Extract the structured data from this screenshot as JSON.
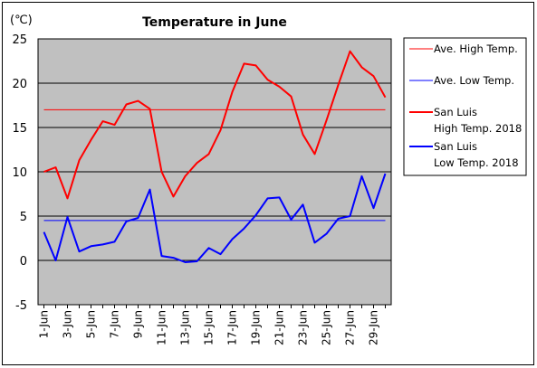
{
  "chart_data": {
    "type": "line",
    "title": "Temperature in June",
    "ylabel": "(℃)",
    "xlabel": "",
    "ylim": [
      -5,
      25
    ],
    "yticks": [
      -5,
      0,
      5,
      10,
      15,
      20,
      25
    ],
    "grid": true,
    "legend_position": "right",
    "x": [
      "1-Jun",
      "2-Jun",
      "3-Jun",
      "4-Jun",
      "5-Jun",
      "6-Jun",
      "7-Jun",
      "8-Jun",
      "9-Jun",
      "10-Jun",
      "11-Jun",
      "12-Jun",
      "13-Jun",
      "14-Jun",
      "15-Jun",
      "16-Jun",
      "17-Jun",
      "18-Jun",
      "19-Jun",
      "20-Jun",
      "21-Jun",
      "22-Jun",
      "23-Jun",
      "24-Jun",
      "25-Jun",
      "26-Jun",
      "27-Jun",
      "28-Jun",
      "29-Jun",
      "30-Jun"
    ],
    "x_tick_labels": [
      "1-Jun",
      "3-Jun",
      "5-Jun",
      "7-Jun",
      "9-Jun",
      "11-Jun",
      "13-Jun",
      "15-Jun",
      "17-Jun",
      "19-Jun",
      "21-Jun",
      "23-Jun",
      "25-Jun",
      "27-Jun",
      "29-Jun"
    ],
    "series": [
      {
        "name": "Ave. High Temp.",
        "color": "#ff0000",
        "width": 1,
        "values": [
          17,
          17,
          17,
          17,
          17,
          17,
          17,
          17,
          17,
          17,
          17,
          17,
          17,
          17,
          17,
          17,
          17,
          17,
          17,
          17,
          17,
          17,
          17,
          17,
          17,
          17,
          17,
          17,
          17,
          17
        ]
      },
      {
        "name": "Ave. Low Temp.",
        "color": "#0000ff",
        "width": 1,
        "values": [
          4.5,
          4.5,
          4.5,
          4.5,
          4.5,
          4.5,
          4.5,
          4.5,
          4.5,
          4.5,
          4.5,
          4.5,
          4.5,
          4.5,
          4.5,
          4.5,
          4.5,
          4.5,
          4.5,
          4.5,
          4.5,
          4.5,
          4.5,
          4.5,
          4.5,
          4.5,
          4.5,
          4.5,
          4.5,
          4.5
        ]
      },
      {
        "name": "San Luis High Temp. 2018",
        "legend_lines": [
          "San Luis",
          "High Temp. 2018"
        ],
        "color": "#ff0000",
        "width": 2,
        "values": [
          10,
          10.5,
          7,
          11.3,
          13.6,
          15.7,
          15.3,
          17.6,
          18,
          17.1,
          10,
          7.2,
          9.5,
          11,
          12,
          14.7,
          19,
          22.2,
          22,
          20.4,
          19.6,
          18.5,
          14.2,
          12,
          15.8,
          19.8,
          23.6,
          21.8,
          20.8,
          18.4
        ]
      },
      {
        "name": "San Luis Low Temp. 2018",
        "legend_lines": [
          "San Luis",
          "Low Temp. 2018"
        ],
        "color": "#0000ff",
        "width": 2,
        "values": [
          3.2,
          0,
          4.9,
          1,
          1.6,
          1.8,
          2.1,
          4.4,
          4.8,
          8,
          0.5,
          0.3,
          -0.2,
          -0.1,
          1.4,
          0.7,
          2.4,
          3.6,
          5.1,
          7,
          7.1,
          4.6,
          6.3,
          2,
          3,
          4.7,
          5,
          9.5,
          5.9,
          9.8
        ]
      }
    ]
  }
}
